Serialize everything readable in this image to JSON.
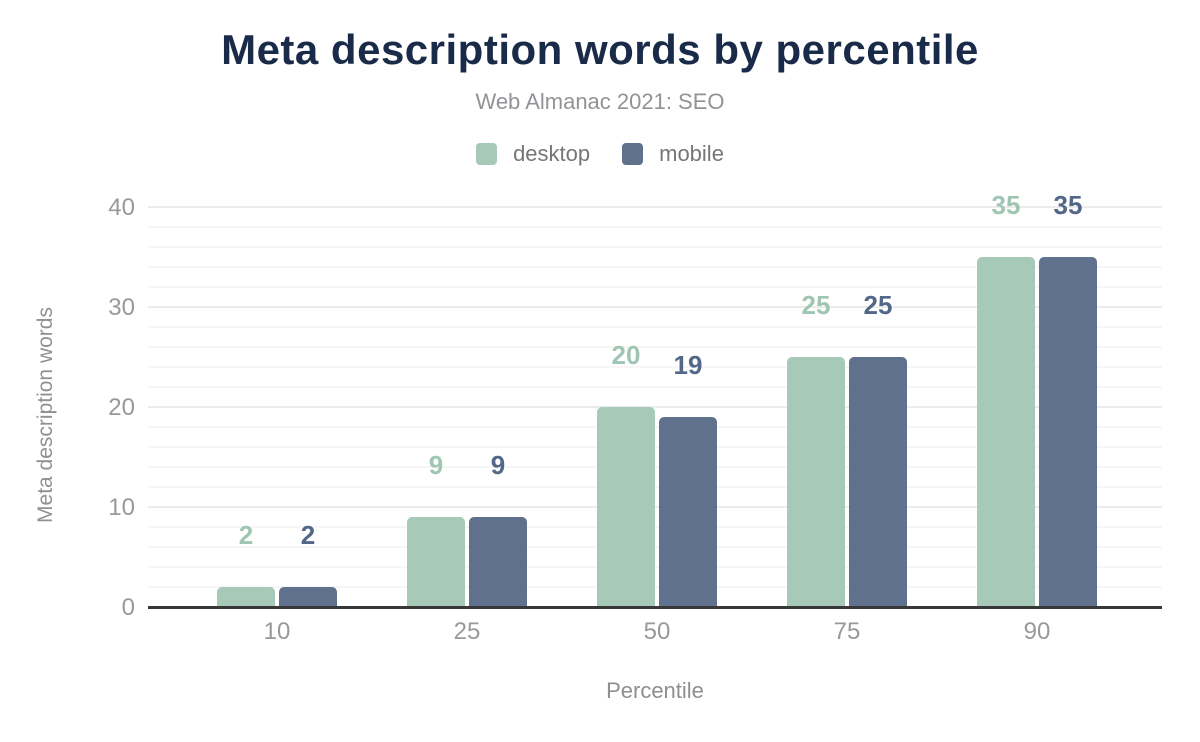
{
  "chart_data": {
    "type": "bar",
    "title": "Meta description words by percentile",
    "subtitle": "Web Almanac 2021: SEO",
    "xlabel": "Percentile",
    "ylabel": "Meta description words",
    "categories": [
      "10",
      "25",
      "50",
      "75",
      "90"
    ],
    "series": [
      {
        "name": "desktop",
        "color": "#a7c9b8",
        "label_color": "#9fc5b3",
        "values": [
          2,
          9,
          20,
          25,
          35
        ],
        "labels": [
          "2",
          "9",
          "20",
          "25",
          "35"
        ]
      },
      {
        "name": "mobile",
        "color": "#5f718c",
        "label_color": "#536789",
        "values": [
          2,
          9,
          19,
          25,
          35
        ],
        "labels": [
          "2",
          "9",
          "19",
          "25",
          "35"
        ]
      }
    ],
    "ylim": [
      0,
      40
    ],
    "yticks": [
      0,
      10,
      20,
      30,
      40
    ],
    "minor_grid_step": 2,
    "grid": "on",
    "legend_position": "top"
  },
  "colors": {
    "title": "#1a2b49",
    "subtitle_gray": "#919396",
    "tick_gray": "#97999b",
    "axis_title_gray": "#8e9093",
    "legend_text_gray": "#747678",
    "baseline": "#383838",
    "gridline_minor": "#f6f6f6",
    "gridline_major": "#ececec",
    "desktop": "#a7c9b8",
    "mobile": "#5f718c"
  }
}
